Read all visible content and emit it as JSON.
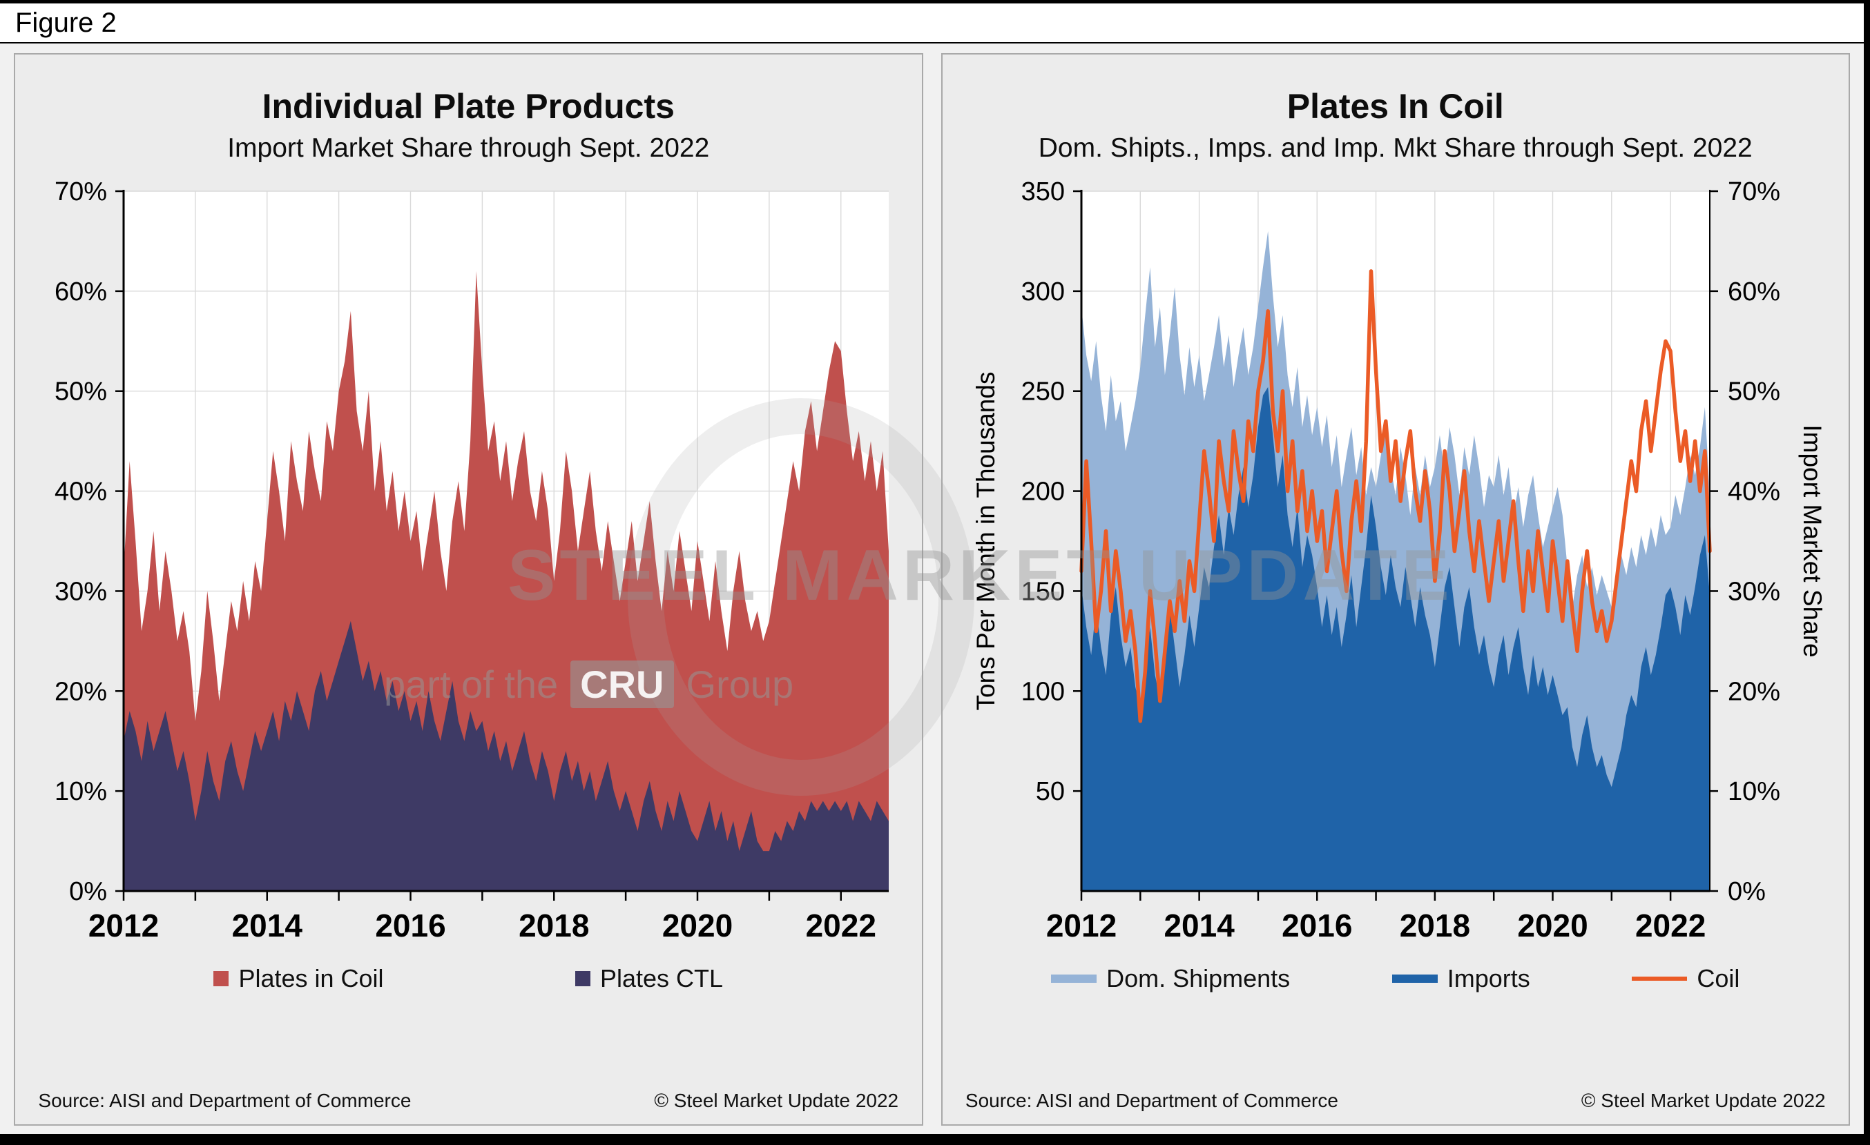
{
  "figure_label": "Figure 2",
  "watermark": {
    "line1": "STEEL MARKET UPDATE",
    "line2_prefix": "part of the",
    "line2_box": "CRU",
    "line2_suffix": "Group"
  },
  "left_panel": {
    "title": "Individual Plate Products",
    "subtitle": "Import Market Share through Sept. 2022",
    "source": "Source: AISI and Department of Commerce",
    "copyright": "© Steel Market Update 2022"
  },
  "right_panel": {
    "title": "Plates In Coil",
    "subtitle": "Dom. Shipts., Imps. and Imp. Mkt Share through Sept. 2022",
    "source": "Source: AISI and Department of Commerce",
    "copyright": "© Steel Market Update 2022"
  },
  "chart_data": [
    {
      "type": "area",
      "title": "Individual Plate Products",
      "subtitle": "Import Market Share through Sept. 2022",
      "x_range": {
        "start": "Jan 2012",
        "end": "Sept 2022",
        "interval": "monthly",
        "points": 129
      },
      "x_tick_labels": [
        "2012",
        "2014",
        "2016",
        "2018",
        "2020",
        "2022"
      ],
      "y_tick_labels": [
        "0%",
        "10%",
        "20%",
        "30%",
        "40%",
        "50%",
        "60%",
        "70%"
      ],
      "ylim": [
        0,
        70
      ],
      "y_unit": "percent",
      "grid": true,
      "legend_position": "bottom",
      "series": [
        {
          "name": "Plates in Coil",
          "color": "#C0504D",
          "values": [
            32,
            43,
            35,
            26,
            30,
            36,
            28,
            34,
            30,
            25,
            28,
            24,
            17,
            22,
            30,
            25,
            19,
            24,
            29,
            26,
            31,
            27,
            33,
            30,
            37,
            44,
            40,
            35,
            45,
            41,
            38,
            46,
            42,
            39,
            47,
            44,
            50,
            53,
            58,
            48,
            44,
            50,
            40,
            45,
            38,
            42,
            36,
            40,
            35,
            38,
            32,
            36,
            40,
            34,
            30,
            37,
            41,
            36,
            45,
            62,
            52,
            44,
            47,
            41,
            45,
            39,
            43,
            46,
            40,
            37,
            42,
            38,
            31,
            36,
            44,
            40,
            34,
            38,
            42,
            36,
            32,
            37,
            33,
            29,
            33,
            37,
            31,
            35,
            39,
            33,
            28,
            34,
            30,
            36,
            32,
            28,
            35,
            31,
            27,
            33,
            28,
            24,
            30,
            34,
            29,
            26,
            28,
            25,
            27,
            31,
            35,
            39,
            43,
            40,
            46,
            49,
            44,
            48,
            52,
            55,
            54,
            48,
            43,
            46,
            41,
            45,
            40,
            44,
            34
          ]
        },
        {
          "name": "Plates CTL",
          "color": "#3E3A65",
          "values": [
            15,
            18,
            16,
            13,
            17,
            14,
            16,
            18,
            15,
            12,
            14,
            11,
            7,
            10,
            14,
            11,
            9,
            13,
            15,
            12,
            10,
            13,
            16,
            14,
            16,
            18,
            15,
            19,
            17,
            20,
            18,
            16,
            20,
            22,
            19,
            21,
            23,
            25,
            27,
            24,
            21,
            23,
            20,
            22,
            19,
            21,
            18,
            20,
            17,
            19,
            16,
            20,
            17,
            15,
            18,
            21,
            17,
            15,
            18,
            16,
            17,
            14,
            16,
            13,
            15,
            12,
            14,
            16,
            13,
            11,
            14,
            12,
            9,
            12,
            14,
            11,
            13,
            10,
            12,
            9,
            11,
            13,
            10,
            8,
            10,
            8,
            6,
            9,
            11,
            8,
            6,
            9,
            7,
            10,
            8,
            6,
            5,
            7,
            9,
            6,
            8,
            5,
            7,
            4,
            6,
            8,
            5,
            4,
            4,
            6,
            5,
            7,
            6,
            8,
            7,
            9,
            8,
            9,
            8,
            9,
            8,
            9,
            7,
            9,
            8,
            7,
            9,
            8,
            7
          ]
        }
      ]
    },
    {
      "type": "combo-area-line",
      "title": "Plates In Coil",
      "subtitle": "Dom. Shipts., Imps. and Imp. Mkt Share through Sept. 2022",
      "x_range": {
        "start": "Jan 2012",
        "end": "Sept 2022",
        "interval": "monthly",
        "points": 129
      },
      "x_tick_labels": [
        "2012",
        "2014",
        "2016",
        "2018",
        "2020",
        "2022"
      ],
      "y_left_label": "Tons Per Month in Thousands",
      "y_right_label": "Import Market Share",
      "y_left_ticks": [
        "350",
        "300",
        "250",
        "200",
        "150",
        "100",
        "50"
      ],
      "y_right_ticks": [
        "70%",
        "60%",
        "50%",
        "40%",
        "30%",
        "20%",
        "10%",
        "0%"
      ],
      "ylim_left": [
        0,
        350
      ],
      "ylim_right": [
        0,
        70
      ],
      "grid": true,
      "legend_position": "bottom",
      "series": [
        {
          "name": "Dom. Shipments",
          "type": "area",
          "axis": "left",
          "color": "#95B3D7",
          "values": [
            292,
            268,
            255,
            275,
            248,
            230,
            258,
            235,
            245,
            220,
            232,
            245,
            262,
            288,
            312,
            272,
            292,
            258,
            278,
            302,
            268,
            248,
            272,
            252,
            268,
            245,
            258,
            272,
            288,
            262,
            278,
            252,
            268,
            282,
            258,
            272,
            292,
            312,
            330,
            298,
            272,
            288,
            258,
            242,
            262,
            232,
            248,
            228,
            242,
            222,
            238,
            212,
            228,
            202,
            218,
            232,
            208,
            222,
            198,
            212,
            202,
            218,
            232,
            212,
            198,
            222,
            208,
            188,
            212,
            198,
            218,
            202,
            212,
            228,
            208,
            232,
            218,
            198,
            222,
            208,
            228,
            212,
            192,
            208,
            202,
            218,
            198,
            212,
            188,
            202,
            182,
            198,
            208,
            188,
            172,
            182,
            192,
            202,
            188,
            162,
            142,
            158,
            168,
            152,
            162,
            148,
            158,
            150,
            142,
            152,
            168,
            158,
            172,
            162,
            178,
            168,
            182,
            172,
            188,
            178,
            182,
            198,
            188,
            202,
            218,
            208,
            222,
            242,
            198
          ]
        },
        {
          "name": "Imports",
          "type": "area",
          "axis": "left",
          "color": "#1F63A8",
          "values": [
            152,
            132,
            118,
            142,
            122,
            108,
            138,
            152,
            128,
            112,
            122,
            102,
            92,
            112,
            132,
            108,
            96,
            118,
            142,
            122,
            102,
            118,
            138,
            122,
            142,
            162,
            152,
            172,
            188,
            168,
            192,
            178,
            198,
            212,
            192,
            208,
            232,
            248,
            252,
            228,
            202,
            218,
            188,
            172,
            192,
            162,
            178,
            168,
            152,
            132,
            148,
            128,
            142,
            122,
            138,
            158,
            132,
            152,
            172,
            198,
            182,
            162,
            148,
            168,
            152,
            142,
            162,
            148,
            132,
            152,
            138,
            128,
            112,
            132,
            152,
            162,
            142,
            122,
            142,
            152,
            132,
            118,
            128,
            112,
            102,
            118,
            128,
            108,
            122,
            132,
            112,
            98,
            118,
            102,
            112,
            98,
            108,
            98,
            88,
            92,
            72,
            62,
            78,
            88,
            72,
            62,
            68,
            58,
            52,
            62,
            72,
            88,
            98,
            92,
            112,
            122,
            108,
            118,
            132,
            148,
            152,
            142,
            128,
            148,
            138,
            152,
            168,
            178,
            148
          ]
        },
        {
          "name": "Coil",
          "type": "line",
          "axis": "right",
          "color": "#EB5B26",
          "values": [
            32,
            43,
            35,
            26,
            30,
            36,
            28,
            34,
            30,
            25,
            28,
            24,
            17,
            22,
            30,
            25,
            19,
            24,
            29,
            26,
            31,
            27,
            33,
            30,
            37,
            44,
            40,
            35,
            45,
            41,
            38,
            46,
            42,
            39,
            47,
            44,
            50,
            53,
            58,
            48,
            44,
            50,
            40,
            45,
            38,
            42,
            36,
            40,
            35,
            38,
            32,
            36,
            40,
            34,
            30,
            37,
            41,
            36,
            45,
            62,
            52,
            44,
            47,
            41,
            45,
            39,
            43,
            46,
            40,
            37,
            42,
            38,
            31,
            36,
            44,
            40,
            34,
            38,
            42,
            36,
            32,
            37,
            33,
            29,
            33,
            37,
            31,
            35,
            39,
            33,
            28,
            34,
            30,
            36,
            32,
            28,
            35,
            31,
            27,
            33,
            28,
            24,
            30,
            34,
            29,
            26,
            28,
            25,
            27,
            31,
            35,
            39,
            43,
            40,
            46,
            49,
            44,
            48,
            52,
            55,
            54,
            48,
            43,
            46,
            41,
            45,
            40,
            44,
            34
          ]
        }
      ]
    }
  ]
}
